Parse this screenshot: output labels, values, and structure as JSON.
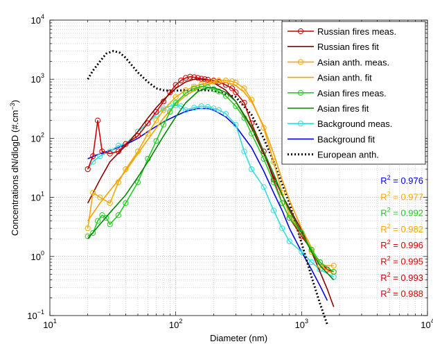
{
  "chart_data": {
    "type": "line",
    "title": "",
    "xlabel": "Diameter (nm)",
    "ylabel_parts": [
      "Concentrations dN/dlogD (#.cm",
      "−3",
      ")"
    ],
    "x_scale": "log",
    "y_scale": "log",
    "xlim": [
      10,
      10000
    ],
    "ylim": [
      0.1,
      10000
    ],
    "x_ticks": [
      {
        "value": 10,
        "base": "10",
        "exp": "1"
      },
      {
        "value": 100,
        "base": "10",
        "exp": "2"
      },
      {
        "value": 1000,
        "base": "10",
        "exp": "3"
      },
      {
        "value": 10000,
        "base": "10",
        "exp": "4"
      }
    ],
    "y_ticks": [
      {
        "value": 0.1,
        "base": "10",
        "exp": "−1"
      },
      {
        "value": 1,
        "base": "10",
        "exp": "0"
      },
      {
        "value": 10,
        "base": "10",
        "exp": "1"
      },
      {
        "value": 100,
        "base": "10",
        "exp": "2"
      },
      {
        "value": 1000,
        "base": "10",
        "exp": "3"
      },
      {
        "value": 10000,
        "base": "10",
        "exp": "4"
      }
    ],
    "grid": true,
    "legend_position": "top-right",
    "series": [
      {
        "name": "Russian fires meas.",
        "color": "#cc0000",
        "style": "line-circle",
        "x": [
          20,
          22,
          24,
          26,
          30,
          35,
          40,
          50,
          60,
          70,
          80,
          90,
          100,
          110,
          120,
          130,
          140,
          150,
          160,
          170,
          180,
          200,
          220,
          250,
          280,
          300,
          350,
          400,
          500,
          600,
          700,
          800,
          1000,
          1200,
          1400,
          1600,
          1800
        ],
        "y": [
          30,
          50,
          200,
          60,
          55,
          60,
          80,
          110,
          180,
          280,
          420,
          600,
          800,
          950,
          1050,
          1100,
          1080,
          1050,
          1020,
          1000,
          980,
          950,
          900,
          800,
          700,
          600,
          400,
          180,
          60,
          20,
          8,
          4.5,
          2.2,
          1.3,
          0.8,
          0.6,
          0.55
        ]
      },
      {
        "name": "Russian fires fit",
        "color": "#8b0000",
        "style": "line",
        "x": [
          20,
          25,
          30,
          40,
          50,
          60,
          70,
          80,
          100,
          120,
          140,
          160,
          180,
          200,
          250,
          300,
          400,
          500,
          600,
          700,
          800,
          1000,
          1200,
          1400,
          1600,
          1800
        ],
        "y": [
          8,
          20,
          40,
          75,
          130,
          220,
          330,
          450,
          700,
          900,
          1000,
          1000,
          950,
          870,
          650,
          420,
          150,
          55,
          22,
          11,
          6.5,
          2.8,
          1.2,
          0.55,
          0.28,
          0.14
        ]
      },
      {
        "name": "Asian anth. meas.",
        "color": "#f5a800",
        "style": "line-circle",
        "x": [
          20,
          22,
          25,
          30,
          35,
          40,
          50,
          60,
          70,
          80,
          100,
          120,
          140,
          160,
          180,
          200,
          220,
          250,
          280,
          300,
          350,
          400,
          500,
          600,
          700,
          800,
          1000,
          1200,
          1400,
          1800
        ],
        "y": [
          3,
          12,
          10,
          8,
          18,
          30,
          60,
          120,
          200,
          300,
          500,
          650,
          750,
          820,
          870,
          920,
          950,
          950,
          920,
          880,
          700,
          450,
          150,
          40,
          12,
          5,
          2.5,
          1.2,
          0.7,
          0.7
        ]
      },
      {
        "name": "Asian anth. fit",
        "color": "#f5a000",
        "style": "line",
        "x": [
          20,
          25,
          30,
          40,
          50,
          60,
          80,
          100,
          120,
          150,
          180,
          200,
          250,
          300,
          350,
          400,
          500,
          600,
          700,
          800,
          1000,
          1200,
          1400,
          1800
        ],
        "y": [
          4,
          8,
          13,
          28,
          55,
          95,
          220,
          380,
          530,
          700,
          820,
          870,
          880,
          780,
          600,
          420,
          160,
          55,
          20,
          9,
          3,
          1.4,
          0.7,
          0.5
        ]
      },
      {
        "name": "Asian fires meas.",
        "color": "#22cc22",
        "style": "line-circle",
        "x": [
          20,
          22,
          24,
          26,
          28,
          30,
          35,
          40,
          50,
          60,
          70,
          80,
          90,
          100,
          120,
          140,
          160,
          180,
          200,
          220,
          250,
          300,
          350,
          400,
          500,
          600,
          700,
          800,
          1000,
          1200,
          1400,
          1800
        ],
        "y": [
          2.2,
          2.5,
          4,
          5,
          4.5,
          3.5,
          5,
          8,
          18,
          45,
          90,
          170,
          280,
          400,
          580,
          700,
          750,
          730,
          680,
          620,
          520,
          350,
          220,
          120,
          45,
          18,
          8,
          4.5,
          2.5,
          1.3,
          0.8,
          0.55
        ]
      },
      {
        "name": "Asian fires fit",
        "color": "#008800",
        "style": "line",
        "x": [
          20,
          25,
          30,
          40,
          50,
          60,
          80,
          100,
          120,
          150,
          180,
          200,
          250,
          300,
          400,
          500,
          600,
          700,
          800,
          1000,
          1200,
          1400,
          1800
        ],
        "y": [
          2,
          3.5,
          5.5,
          11,
          22,
          40,
          110,
          230,
          400,
          620,
          720,
          720,
          600,
          420,
          160,
          60,
          25,
          11,
          6,
          2.5,
          1.2,
          0.7,
          0.4
        ]
      },
      {
        "name": "Background meas.",
        "color": "#33dddd",
        "style": "line-circle",
        "x": [
          20,
          22,
          25,
          30,
          35,
          40,
          50,
          60,
          70,
          80,
          90,
          100,
          110,
          120,
          140,
          160,
          180,
          200,
          220,
          250,
          300,
          350,
          400,
          500,
          600,
          700,
          800,
          1000,
          1200,
          1400,
          1800
        ],
        "y": [
          30,
          40,
          50,
          60,
          75,
          80,
          130,
          180,
          250,
          320,
          350,
          360,
          350,
          300,
          330,
          350,
          340,
          320,
          300,
          260,
          170,
          60,
          30,
          15,
          6,
          3,
          1.8,
          1.2,
          0.8,
          0.6,
          0.45
        ]
      },
      {
        "name": "Background fit",
        "color": "#0000ee",
        "style": "line",
        "x": [
          20,
          25,
          30,
          40,
          50,
          60,
          80,
          100,
          120,
          150,
          180,
          200,
          250,
          300,
          400,
          500,
          600,
          700,
          800,
          1000,
          1200,
          1400,
          1600
        ],
        "y": [
          45,
          55,
          62,
          78,
          100,
          130,
          190,
          240,
          285,
          320,
          320,
          300,
          230,
          160,
          70,
          28,
          12,
          6,
          3,
          1.2,
          0.6,
          0.32,
          0.18
        ]
      },
      {
        "name": "European anth.",
        "color": "#000000",
        "style": "dotted",
        "x": [
          20,
          22,
          25,
          28,
          32,
          36,
          40,
          45,
          50,
          60,
          70,
          80,
          90,
          100,
          120,
          150,
          200,
          300,
          400,
          500,
          600,
          800,
          1000,
          1200,
          1400,
          1600
        ],
        "y": [
          1000,
          1400,
          2000,
          2700,
          3000,
          2800,
          2300,
          1700,
          1300,
          900,
          700,
          650,
          640,
          640,
          650,
          660,
          640,
          500,
          250,
          100,
          40,
          8,
          1.7,
          0.45,
          0.16,
          0.07
        ]
      }
    ],
    "r2_labels": [
      {
        "label": "R",
        "sup": "2",
        "value": " = 0.976",
        "color": "#0000ee"
      },
      {
        "label": "R",
        "sup": "2",
        "value": " = 0.977",
        "color": "#f5a800"
      },
      {
        "label": "R",
        "sup": "2",
        "value": " = 0.992",
        "color": "#22cc22"
      },
      {
        "label": "R",
        "sup": "2",
        "value": " = 0.982",
        "color": "#f5a800"
      },
      {
        "label": "R",
        "sup": "2",
        "value": " = 0.996",
        "color": "#e00000"
      },
      {
        "label": "R",
        "sup": "2",
        "value": " = 0.995",
        "color": "#e00000"
      },
      {
        "label": "R",
        "sup": "2",
        "value": " = 0.993",
        "color": "#cc0000"
      },
      {
        "label": "R",
        "sup": "2",
        "value": " = 0.988",
        "color": "#e00000"
      }
    ]
  }
}
